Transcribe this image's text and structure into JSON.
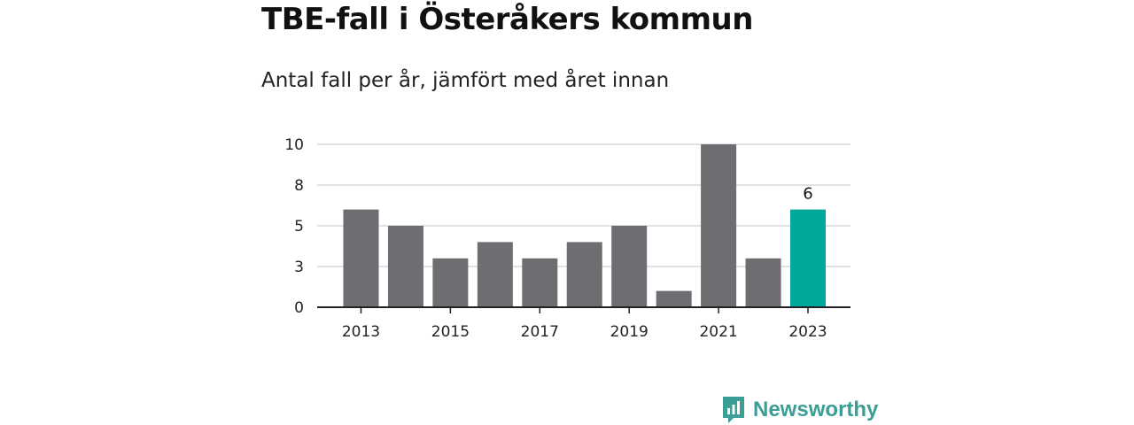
{
  "title": "TBE-fall i Österåkers kommun",
  "subtitle": "Antal fall per år, jämfört med året innan",
  "colors": {
    "bar": "#6e6d72",
    "highlight": "#00a79a",
    "grid": "#d9d9d9",
    "axis": "#222222",
    "brand": "#3a9e95"
  },
  "brand": {
    "name": "Newsworthy",
    "icon": "newsworthy-logo-icon"
  },
  "chart_data": {
    "type": "bar",
    "title": "TBE-fall i Österåkers kommun",
    "subtitle": "Antal fall per år, jämfört med året innan",
    "xlabel": "",
    "ylabel": "",
    "categories": [
      "2013",
      "2014",
      "2015",
      "2016",
      "2017",
      "2018",
      "2019",
      "2020",
      "2021",
      "2022",
      "2023"
    ],
    "values": [
      6,
      5,
      3,
      4,
      3,
      4,
      5,
      1,
      10,
      3,
      6
    ],
    "highlight_index": 10,
    "x_tick_labels": [
      "2013",
      "2015",
      "2017",
      "2019",
      "2021",
      "2023"
    ],
    "y_ticks": [
      0,
      2.5,
      5,
      7.5,
      10
    ],
    "y_tick_labels": [
      "0",
      "3",
      "5",
      "8",
      "10"
    ],
    "ylim": [
      0,
      10
    ],
    "grid": true,
    "legend": "none",
    "data_labels": [
      {
        "category": "2023",
        "text": "6"
      }
    ]
  }
}
